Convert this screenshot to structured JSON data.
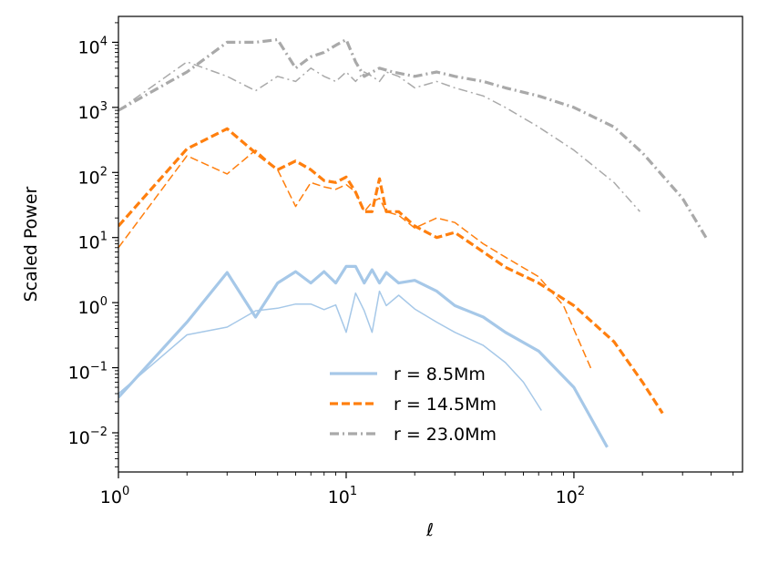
{
  "chart_data": {
    "type": "line",
    "title": "",
    "xlabel": "ℓ",
    "ylabel": "Scaled Power",
    "xscale": "log",
    "yscale": "log",
    "xlim": [
      1,
      550
    ],
    "ylim": [
      0.0025,
      25000
    ],
    "x_ticks": [
      {
        "base": "10",
        "exp": "0"
      },
      {
        "base": "10",
        "exp": "1"
      },
      {
        "base": "10",
        "exp": "2"
      }
    ],
    "y_ticks": [
      {
        "base": "10",
        "exp": "−2"
      },
      {
        "base": "10",
        "exp": "−1"
      },
      {
        "base": "10",
        "exp": "0"
      },
      {
        "base": "10",
        "exp": "1"
      },
      {
        "base": "10",
        "exp": "2"
      },
      {
        "base": "10",
        "exp": "3"
      },
      {
        "base": "10",
        "exp": "4"
      }
    ],
    "grid": false,
    "legend_position": "lower-center",
    "series": [
      {
        "name": "r = 8.5Mm",
        "color": "#a6c8e8",
        "dash": "solid",
        "width": "thick",
        "legend": true,
        "x": [
          1,
          2,
          3,
          4,
          5,
          6,
          7,
          8,
          9,
          10,
          11,
          12,
          13,
          14,
          15,
          17,
          20,
          25,
          30,
          40,
          50,
          70,
          100,
          140
        ],
        "y": [
          0.035,
          0.5,
          2.9,
          0.6,
          2.0,
          3.0,
          2.0,
          3.0,
          2.0,
          3.6,
          3.6,
          2.0,
          3.2,
          2.0,
          2.9,
          2.0,
          2.2,
          1.5,
          0.9,
          0.6,
          0.35,
          0.18,
          0.05,
          0.006
        ]
      },
      {
        "name": "r = 8.5Mm",
        "color": "#a6c8e8",
        "dash": "solid",
        "width": "thin",
        "legend": false,
        "x": [
          1,
          2,
          3,
          4,
          5,
          6,
          7,
          8,
          9,
          10,
          11,
          12,
          13,
          14,
          15,
          17,
          20,
          25,
          30,
          40,
          50,
          60,
          72
        ],
        "y": [
          0.04,
          0.32,
          0.42,
          0.75,
          0.82,
          0.95,
          0.95,
          0.78,
          0.92,
          0.35,
          1.4,
          0.75,
          0.35,
          1.5,
          0.9,
          1.3,
          0.8,
          0.5,
          0.35,
          0.22,
          0.12,
          0.06,
          0.022
        ]
      },
      {
        "name": "r = 14.5Mm",
        "color": "#ff7f0e",
        "dash": "dashed",
        "width": "thick",
        "legend": true,
        "x": [
          1,
          2,
          3,
          4,
          5,
          6,
          7,
          8,
          9,
          10,
          11,
          12,
          13,
          14,
          15,
          17,
          20,
          25,
          30,
          40,
          50,
          70,
          100,
          150,
          200,
          245
        ],
        "y": [
          15,
          230,
          470,
          200,
          110,
          150,
          110,
          75,
          70,
          85,
          50,
          25,
          25,
          80,
          25,
          25,
          15,
          10,
          12,
          6,
          3.5,
          2.0,
          0.9,
          0.25,
          0.06,
          0.02
        ]
      },
      {
        "name": "r = 14.5Mm",
        "color": "#ff7f0e",
        "dash": "dashed",
        "width": "thin",
        "legend": false,
        "x": [
          1,
          2,
          3,
          4,
          5,
          6,
          7,
          8,
          9,
          10,
          11,
          12,
          13,
          14,
          15,
          17,
          20,
          25,
          30,
          40,
          50,
          70,
          90,
          120
        ],
        "y": [
          7,
          180,
          95,
          220,
          110,
          30,
          70,
          60,
          55,
          65,
          50,
          25,
          35,
          40,
          25,
          22,
          14,
          20,
          17,
          8,
          5,
          2.5,
          0.9,
          0.09
        ]
      },
      {
        "name": "r = 23.0Mm",
        "color": "#a9a9a9",
        "dash": "dashdot",
        "width": "thick",
        "legend": true,
        "x": [
          1,
          2,
          3,
          4,
          5,
          6,
          7,
          8,
          9,
          10,
          11,
          12,
          14,
          16,
          20,
          25,
          30,
          40,
          50,
          70,
          100,
          150,
          200,
          300,
          380
        ],
        "y": [
          900,
          3500,
          10000,
          10000,
          11000,
          4000,
          6000,
          7000,
          9000,
          11000,
          5000,
          3000,
          4000,
          3500,
          3000,
          3500,
          3000,
          2500,
          2000,
          1500,
          1000,
          500,
          200,
          40,
          10
        ]
      },
      {
        "name": "r = 23.0Mm",
        "color": "#a9a9a9",
        "dash": "dashdot",
        "width": "thin",
        "legend": false,
        "x": [
          1,
          2,
          3,
          4,
          5,
          6,
          7,
          8,
          9,
          10,
          11,
          12,
          13,
          14,
          15,
          17,
          20,
          25,
          30,
          40,
          50,
          70,
          100,
          150,
          195
        ],
        "y": [
          900,
          5000,
          3000,
          1800,
          3000,
          2500,
          4000,
          3000,
          2500,
          3500,
          2500,
          3500,
          3000,
          2500,
          3500,
          3000,
          2000,
          2500,
          2000,
          1500,
          1000,
          500,
          220,
          70,
          25
        ]
      }
    ]
  }
}
